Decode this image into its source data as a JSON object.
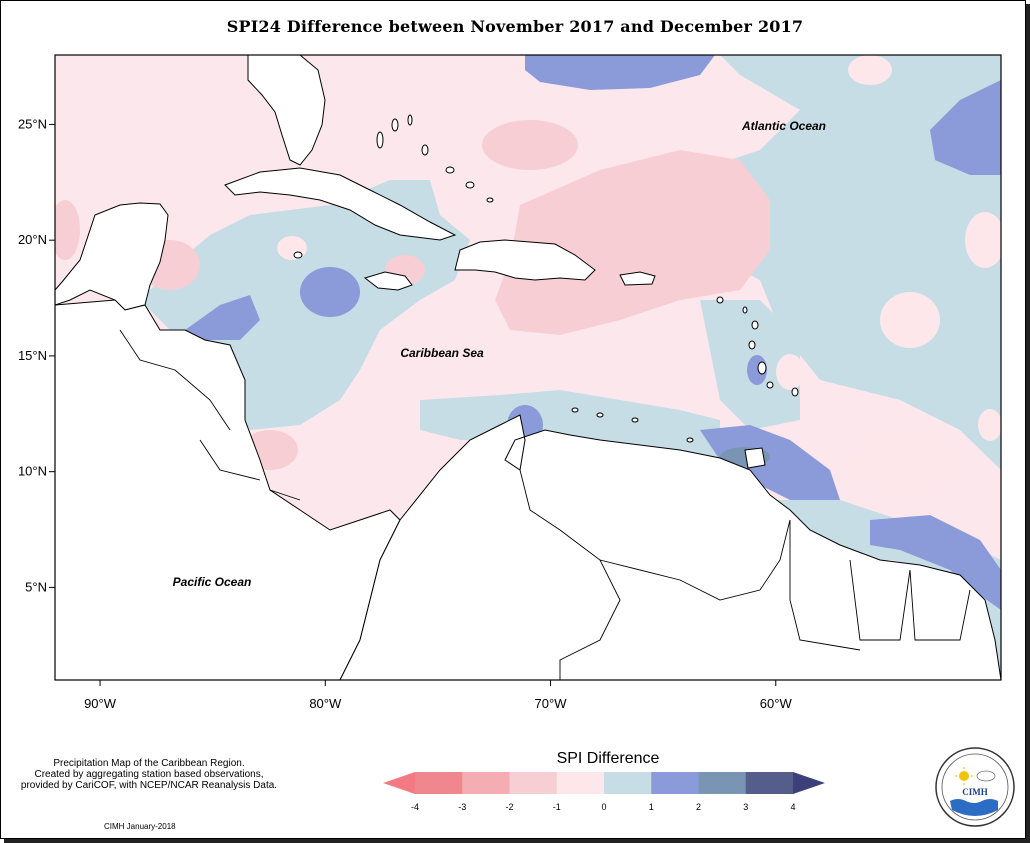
{
  "title": "SPI24 Difference between November 2017 and December 2017",
  "map": {
    "lon_range": [
      -92,
      -50
    ],
    "lat_range": [
      1,
      28
    ],
    "x_ticks": [
      {
        "lon": -90,
        "label": "90°W"
      },
      {
        "lon": -80,
        "label": "80°W"
      },
      {
        "lon": -70,
        "label": "70°W"
      },
      {
        "lon": -60,
        "label": "60°W"
      }
    ],
    "y_ticks": [
      {
        "lat": 25,
        "label": "25°N"
      },
      {
        "lat": 20,
        "label": "20°N"
      },
      {
        "lat": 15,
        "label": "15°N"
      },
      {
        "lat": 10,
        "label": "10°N"
      },
      {
        "lat": 5,
        "label": "5°N"
      }
    ],
    "ocean_labels": {
      "atlantic": "Atlantic Ocean",
      "caribbean": "Caribbean Sea",
      "pacific": "Pacific Ocean"
    },
    "background_color": "#fce8ec",
    "land_color": "#ffffff"
  },
  "legend": {
    "title": "SPI Difference",
    "tick_labels": [
      "-4",
      "-3",
      "-2",
      "-1",
      "0",
      "1",
      "2",
      "3",
      "4"
    ],
    "colors": [
      "#f0868e",
      "#f4adb2",
      "#f7ced3",
      "#fde7ea",
      "#c6dde6",
      "#8b9ad8",
      "#7a95b3",
      "#555e8a"
    ],
    "low_arrow_color": "#f37a82",
    "high_arrow_color": "#3b3f7a"
  },
  "footer": {
    "info_lines": [
      "Precipitation Map of the Caribbean Region.",
      "Created by aggregating station based observations,",
      "provided by CariCOF, with NCEP/NCAR Reanalysis Data."
    ],
    "credit": "CIMH January-2018",
    "logo_text": "CIMH"
  }
}
